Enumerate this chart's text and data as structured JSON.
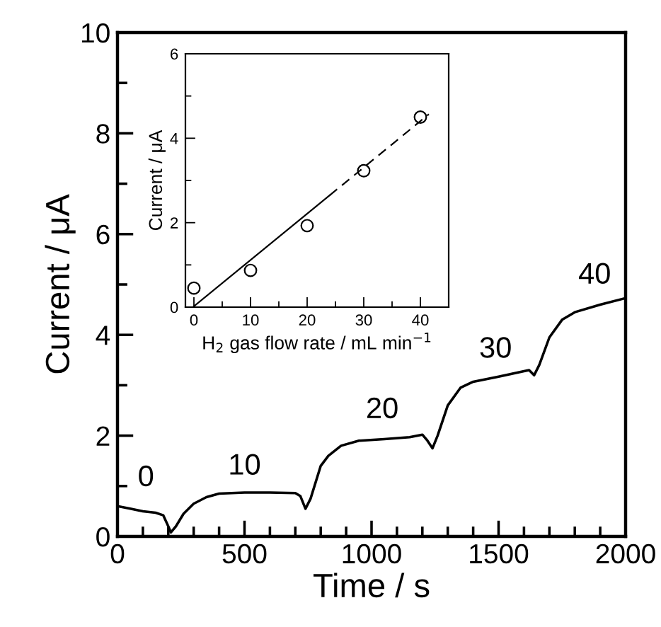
{
  "chart_data": [
    {
      "type": "line",
      "xlabel": "Time / s",
      "ylabel": "Current / μA",
      "xlim": [
        0,
        2000
      ],
      "ylim": [
        0,
        10
      ],
      "xticks": [
        0,
        500,
        1000,
        1500,
        2000
      ],
      "yticks": [
        0,
        2,
        4,
        6,
        8,
        10
      ],
      "grid": false,
      "legend": false,
      "marker": "none",
      "line_style": "solid",
      "series": [
        {
          "color": "#000000",
          "x": [
            0,
            50,
            100,
            150,
            180,
            200,
            210,
            230,
            260,
            300,
            350,
            400,
            500,
            600,
            700,
            720,
            740,
            760,
            800,
            830,
            880,
            950,
            1050,
            1150,
            1200,
            1220,
            1240,
            1260,
            1300,
            1350,
            1400,
            1500,
            1600,
            1620,
            1640,
            1660,
            1700,
            1750,
            1800,
            1900,
            2000
          ],
          "values": [
            0.6,
            0.55,
            0.5,
            0.47,
            0.42,
            0.2,
            0.08,
            0.2,
            0.45,
            0.65,
            0.78,
            0.85,
            0.87,
            0.87,
            0.86,
            0.8,
            0.55,
            0.75,
            1.4,
            1.6,
            1.8,
            1.9,
            1.93,
            1.97,
            2.02,
            1.9,
            1.75,
            2.0,
            2.6,
            2.95,
            3.07,
            3.17,
            3.28,
            3.3,
            3.2,
            3.4,
            3.95,
            4.3,
            4.45,
            4.6,
            4.73
          ]
        }
      ],
      "annotations": [
        "0",
        "10",
        "20",
        "30",
        "40"
      ]
    },
    {
      "type": "scatter",
      "xlabel": "H$_{2}$ gas flow rate / mL min$^{−1}$",
      "ylabel": "Current / μA",
      "xlim": [
        -1.5,
        45
      ],
      "ylim": [
        0,
        6
      ],
      "xticks": [
        0,
        10,
        20,
        30,
        40
      ],
      "yticks": [
        0,
        2,
        4,
        6
      ],
      "grid": false,
      "legend": false,
      "series": [
        {
          "type": "scatter",
          "marker": "circle",
          "color": "#000000",
          "x": [
            0,
            10,
            20,
            30,
            40
          ],
          "values": [
            0.45,
            0.87,
            1.93,
            3.23,
            4.5
          ]
        },
        {
          "type": "line",
          "marker": "none",
          "line_style": "solid",
          "color": "#000000",
          "x": [
            0,
            24
          ],
          "values": [
            0.02,
            2.65
          ]
        },
        {
          "type": "line",
          "marker": "none",
          "line_style": "dashed",
          "color": "#000000",
          "x": [
            24,
            41.5
          ],
          "values": [
            2.65,
            4.57
          ]
        }
      ]
    }
  ]
}
